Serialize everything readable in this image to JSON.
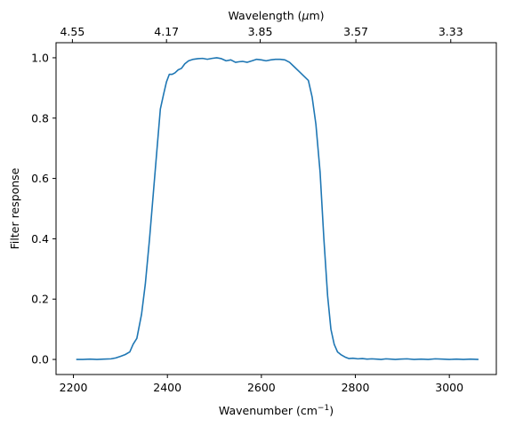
{
  "chart_data": {
    "type": "line",
    "title": "",
    "xlabel": "Wavenumber (cm",
    "xlabel_sup": "−1",
    "xlabel_close": ")",
    "ylabel": "Filter response",
    "top_xlabel_pre": "Wavelength (",
    "top_xlabel_mu": "μ",
    "top_xlabel_post": "m)",
    "xlim": [
      2163,
      3100
    ],
    "ylim": [
      -0.05,
      1.05
    ],
    "x_ticks": [
      2200,
      2400,
      2600,
      2800,
      3000
    ],
    "x_tick_labels": [
      "2200",
      "2400",
      "2600",
      "2800",
      "3000"
    ],
    "y_ticks": [
      0.0,
      0.2,
      0.4,
      0.6,
      0.8,
      1.0
    ],
    "y_tick_labels": [
      "0.0",
      "0.2",
      "0.4",
      "0.6",
      "0.8",
      "1.0"
    ],
    "top_ticks": [
      4.55,
      4.17,
      3.85,
      3.57,
      3.33
    ],
    "top_tick_labels": [
      "4.55",
      "4.17",
      "3.85",
      "3.57",
      "3.33"
    ],
    "grid": false,
    "line_color": "#1f77b4",
    "series": [
      {
        "x": [
          2206,
          2220,
          2235,
          2250,
          2265,
          2280,
          2290,
          2300,
          2310,
          2320,
          2327,
          2335,
          2345,
          2353,
          2362,
          2370,
          2378,
          2385,
          2392,
          2398,
          2404,
          2410,
          2416,
          2423,
          2430,
          2437,
          2445,
          2455,
          2465,
          2475,
          2485,
          2495,
          2505,
          2515,
          2525,
          2535,
          2545,
          2553,
          2560,
          2570,
          2580,
          2590,
          2600,
          2610,
          2620,
          2630,
          2640,
          2650,
          2660,
          2670,
          2680,
          2690,
          2700,
          2708,
          2716,
          2725,
          2733,
          2741,
          2748,
          2755,
          2762,
          2770,
          2778,
          2786,
          2795,
          2805,
          2815,
          2825,
          2835,
          2845,
          2855,
          2865,
          2875,
          2885,
          2895,
          2910,
          2925,
          2940,
          2955,
          2970,
          2985,
          3000,
          3015,
          3030,
          3045,
          3062
        ],
        "y": [
          0.0,
          0.0,
          0.001,
          0.0,
          0.001,
          0.002,
          0.005,
          0.01,
          0.016,
          0.025,
          0.05,
          0.07,
          0.15,
          0.25,
          0.4,
          0.55,
          0.7,
          0.83,
          0.88,
          0.92,
          0.945,
          0.945,
          0.95,
          0.96,
          0.965,
          0.98,
          0.99,
          0.995,
          0.997,
          0.998,
          0.995,
          0.998,
          1.0,
          0.997,
          0.99,
          0.993,
          0.985,
          0.987,
          0.988,
          0.985,
          0.99,
          0.995,
          0.993,
          0.99,
          0.993,
          0.995,
          0.995,
          0.993,
          0.985,
          0.97,
          0.955,
          0.94,
          0.925,
          0.87,
          0.78,
          0.62,
          0.4,
          0.21,
          0.1,
          0.05,
          0.025,
          0.015,
          0.008,
          0.003,
          0.004,
          0.002,
          0.003,
          0.001,
          0.002,
          0.001,
          0.0,
          0.002,
          0.001,
          0.0,
          0.001,
          0.002,
          0.0,
          0.001,
          0.0,
          0.002,
          0.001,
          0.0,
          0.001,
          0.0,
          0.001,
          0.0
        ]
      }
    ]
  }
}
